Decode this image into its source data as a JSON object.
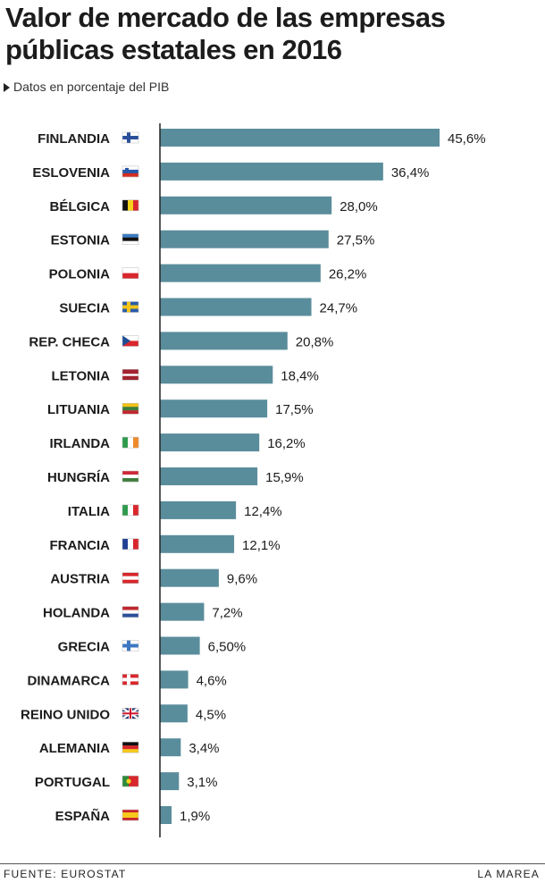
{
  "header": {
    "title": "Valor de mercado de las empresas públicas estatales en 2016",
    "subtitle": "Datos en porcentaje del PIB"
  },
  "footer": {
    "source": "FUENTE: EUROSTAT",
    "credit": "LA MAREA"
  },
  "colors": {
    "bar": "#5a8d9b",
    "axis": "#222222",
    "text": "#1c1c1c"
  },
  "chart_data": {
    "type": "bar",
    "orientation": "horizontal",
    "title": "Valor de mercado de las empresas públicas estatales en 2016",
    "subtitle": "Datos en porcentaje del PIB",
    "categories": [
      "FINLANDIA",
      "ESLOVENIA",
      "BÉLGICA",
      "ESTONIA",
      "POLONIA",
      "SUECIA",
      "REP. CHECA",
      "LETONIA",
      "LITUANIA",
      "IRLANDA",
      "HUNGRÍA",
      "ITALIA",
      "FRANCIA",
      "AUSTRIA",
      "HOLANDA",
      "GRECIA",
      "DINAMARCA",
      "REINO UNIDO",
      "ALEMANIA",
      "PORTUGAL",
      "ESPAÑA"
    ],
    "values": [
      45.6,
      36.4,
      28.0,
      27.5,
      26.2,
      24.7,
      20.8,
      18.4,
      17.5,
      16.2,
      15.9,
      12.4,
      12.1,
      9.6,
      7.2,
      6.5,
      4.6,
      4.5,
      3.4,
      3.1,
      1.9
    ],
    "value_labels": [
      "45,6%",
      "36,4%",
      "28,0%",
      "27,5%",
      "26,2%",
      "24,7%",
      "20,8%",
      "18,4%",
      "17,5%",
      "16,2%",
      "15,9%",
      "12,4%",
      "12,1%",
      "9,6%",
      "7,2%",
      "6,50%",
      "4,6%",
      "4,5%",
      "3,4%",
      "3,1%",
      "1,9%"
    ],
    "flags": [
      "flag-finland-icon",
      "flag-slovenia-icon",
      "flag-belgium-icon",
      "flag-estonia-icon",
      "flag-poland-icon",
      "flag-sweden-icon",
      "flag-czechia-icon",
      "flag-latvia-icon",
      "flag-lithuania-icon",
      "flag-ireland-icon",
      "flag-hungary-icon",
      "flag-italy-icon",
      "flag-france-icon",
      "flag-austria-icon",
      "flag-netherlands-icon",
      "flag-greece-icon",
      "flag-denmark-icon",
      "flag-uk-icon",
      "flag-germany-icon",
      "flag-portugal-icon",
      "flag-spain-icon"
    ],
    "xlim": [
      0,
      45.6
    ],
    "grid": false,
    "legend": "none"
  }
}
